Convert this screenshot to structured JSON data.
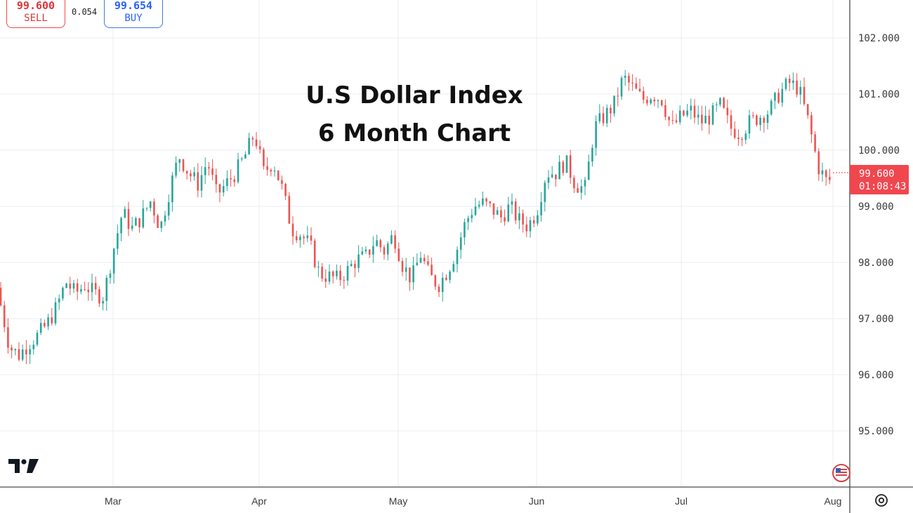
{
  "trade": {
    "sell_price": "99.600",
    "sell_label": "SELL",
    "buy_price": "99.654",
    "buy_label": "BUY",
    "spread": "0.054"
  },
  "current_price": {
    "value": "99.600",
    "countdown": "01:08:43",
    "color": "#f0474f"
  },
  "icons": {
    "logo": "tradingview-logo-icon",
    "flag": "us-flag-icon",
    "settings": "settings-icon"
  },
  "colors": {
    "up": "#26a69a",
    "down": "#ef5350",
    "grid": "#e8edf3"
  },
  "chart_data": {
    "type": "candlestick",
    "title": [
      "U.S Dollar Index",
      "6 Month Chart"
    ],
    "xlabel": "",
    "ylabel": "",
    "ylim": [
      94.2,
      102.7
    ],
    "y_ticks": [
      "102.000",
      "101.000",
      "100.000",
      "99.000",
      "98.000",
      "97.000",
      "96.000",
      "95.000"
    ],
    "x_ticks": [
      "Mar",
      "Apr",
      "May",
      "Jun",
      "Jul",
      "Aug"
    ],
    "grid": true,
    "series": [
      {
        "values": [
          {
            "x": "Feb 3",
            "y": 97.55
          },
          {
            "x": "Feb 5",
            "y": 97.3
          },
          {
            "x": "Feb 7",
            "y": 96.5
          },
          {
            "x": "Feb 9",
            "y": 96.35
          },
          {
            "x": "Feb 11",
            "y": 96.55
          },
          {
            "x": "Feb 13",
            "y": 96.7
          },
          {
            "x": "Feb 15",
            "y": 96.9
          },
          {
            "x": "Feb 17",
            "y": 97.2
          },
          {
            "x": "Feb 19",
            "y": 97.65
          },
          {
            "x": "Feb 21",
            "y": 97.45
          },
          {
            "x": "Feb 23",
            "y": 97.6
          },
          {
            "x": "Feb 25",
            "y": 97.45
          },
          {
            "x": "Feb 27",
            "y": 97.4
          },
          {
            "x": "Mar 1",
            "y": 98.2
          },
          {
            "x": "Mar 3",
            "y": 98.9
          },
          {
            "x": "Mar 5",
            "y": 98.6
          },
          {
            "x": "Mar 7",
            "y": 98.8
          },
          {
            "x": "Mar 9",
            "y": 99.1
          },
          {
            "x": "Mar 11",
            "y": 98.6
          },
          {
            "x": "Mar 13",
            "y": 99.3
          },
          {
            "x": "Mar 15",
            "y": 99.9
          },
          {
            "x": "Mar 17",
            "y": 99.6
          },
          {
            "x": "Mar 19",
            "y": 99.4
          },
          {
            "x": "Mar 21",
            "y": 99.8
          },
          {
            "x": "Mar 23",
            "y": 99.2
          },
          {
            "x": "Mar 25",
            "y": 99.4
          },
          {
            "x": "Mar 27",
            "y": 99.6
          },
          {
            "x": "Mar 29",
            "y": 99.9
          },
          {
            "x": "Mar 31",
            "y": 100.3
          },
          {
            "x": "Apr 2",
            "y": 99.6
          },
          {
            "x": "Apr 4",
            "y": 99.8
          },
          {
            "x": "Apr 6",
            "y": 99.3
          },
          {
            "x": "Apr 8",
            "y": 98.6
          },
          {
            "x": "Apr 10",
            "y": 98.5
          },
          {
            "x": "Apr 12",
            "y": 98.3
          },
          {
            "x": "Apr 14",
            "y": 97.8
          },
          {
            "x": "Apr 16",
            "y": 97.75
          },
          {
            "x": "Apr 18",
            "y": 97.7
          },
          {
            "x": "Apr 20",
            "y": 97.85
          },
          {
            "x": "Apr 22",
            "y": 98.05
          },
          {
            "x": "Apr 24",
            "y": 98.1
          },
          {
            "x": "Apr 26",
            "y": 98.4
          },
          {
            "x": "Apr 28",
            "y": 98.2
          },
          {
            "x": "Apr 30",
            "y": 98.5
          },
          {
            "x": "May 2",
            "y": 97.95
          },
          {
            "x": "May 4",
            "y": 97.7
          },
          {
            "x": "May 6",
            "y": 98.15
          },
          {
            "x": "May 8",
            "y": 97.75
          },
          {
            "x": "May 10",
            "y": 97.6
          },
          {
            "x": "May 12",
            "y": 97.85
          },
          {
            "x": "May 14",
            "y": 98.2
          },
          {
            "x": "May 16",
            "y": 98.7
          },
          {
            "x": "May 18",
            "y": 99.0
          },
          {
            "x": "May 20",
            "y": 99.05
          },
          {
            "x": "May 22",
            "y": 98.95
          },
          {
            "x": "May 24",
            "y": 98.8
          },
          {
            "x": "May 26",
            "y": 99.0
          },
          {
            "x": "May 28",
            "y": 98.75
          },
          {
            "x": "May 30",
            "y": 98.65
          },
          {
            "x": "Jun 1",
            "y": 98.9
          },
          {
            "x": "Jun 3",
            "y": 99.6
          },
          {
            "x": "Jun 5",
            "y": 99.6
          },
          {
            "x": "Jun 7",
            "y": 99.8
          },
          {
            "x": "Jun 9",
            "y": 99.4
          },
          {
            "x": "Jun 11",
            "y": 99.3
          },
          {
            "x": "Jun 13",
            "y": 100.4
          },
          {
            "x": "Jun 15",
            "y": 100.6
          },
          {
            "x": "Jun 17",
            "y": 100.8
          },
          {
            "x": "Jun 19",
            "y": 101.3
          },
          {
            "x": "Jun 21",
            "y": 101.1
          },
          {
            "x": "Jun 23",
            "y": 100.9
          },
          {
            "x": "Jun 25",
            "y": 101.0
          },
          {
            "x": "Jun 27",
            "y": 100.9
          },
          {
            "x": "Jun 29",
            "y": 100.4
          },
          {
            "x": "Jul 1",
            "y": 100.6
          },
          {
            "x": "Jul 3",
            "y": 100.7
          },
          {
            "x": "Jul 5",
            "y": 100.5
          },
          {
            "x": "Jul 7",
            "y": 100.6
          },
          {
            "x": "Jul 9",
            "y": 100.8
          },
          {
            "x": "Jul 11",
            "y": 100.4
          },
          {
            "x": "Jul 13",
            "y": 100.3
          },
          {
            "x": "Jul 15",
            "y": 100.5
          },
          {
            "x": "Jul 17",
            "y": 100.6
          },
          {
            "x": "Jul 19",
            "y": 100.7
          },
          {
            "x": "Jul 21",
            "y": 101.0
          },
          {
            "x": "Jul 23",
            "y": 101.2
          },
          {
            "x": "Jul 25",
            "y": 101.1
          },
          {
            "x": "Jul 27",
            "y": 100.5
          },
          {
            "x": "Jul 29",
            "y": 99.7
          },
          {
            "x": "Jul 31",
            "y": 99.4
          },
          {
            "x": "Aug 2",
            "y": 99.6
          }
        ]
      }
    ]
  }
}
